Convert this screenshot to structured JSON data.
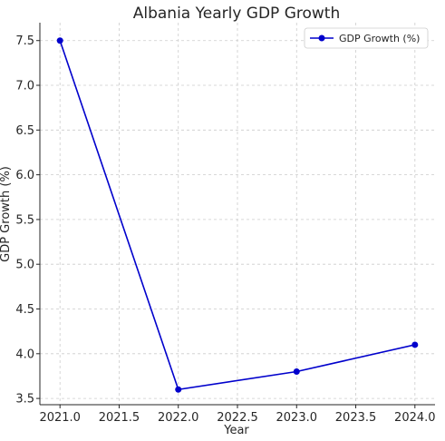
{
  "chart_data": {
    "type": "line",
    "title": "Albania Yearly GDP Growth",
    "xlabel": "Year",
    "ylabel": "GDP Growth (%)",
    "x": [
      2021,
      2022,
      2023,
      2024
    ],
    "series": [
      {
        "name": "GDP Growth (%)",
        "values": [
          7.5,
          3.6,
          3.8,
          4.1
        ],
        "color": "#0000cc",
        "marker": "circle"
      }
    ],
    "x_ticks": [
      2021.0,
      2021.5,
      2022.0,
      2022.5,
      2023.0,
      2023.5,
      2024.0
    ],
    "x_tick_labels": [
      "2021.0",
      "2021.5",
      "2022.0",
      "2022.5",
      "2023.0",
      "2023.5",
      "2024.0"
    ],
    "y_ticks": [
      3.5,
      4.0,
      4.5,
      5.0,
      5.5,
      6.0,
      6.5,
      7.0,
      7.5
    ],
    "y_tick_labels": [
      "3.5",
      "4.0",
      "4.5",
      "5.0",
      "5.5",
      "6.0",
      "6.5",
      "7.0",
      "7.5"
    ],
    "xlim": [
      2020.83,
      2024.17
    ],
    "ylim": [
      3.43,
      7.7
    ],
    "grid": true,
    "legend": "top-right"
  }
}
